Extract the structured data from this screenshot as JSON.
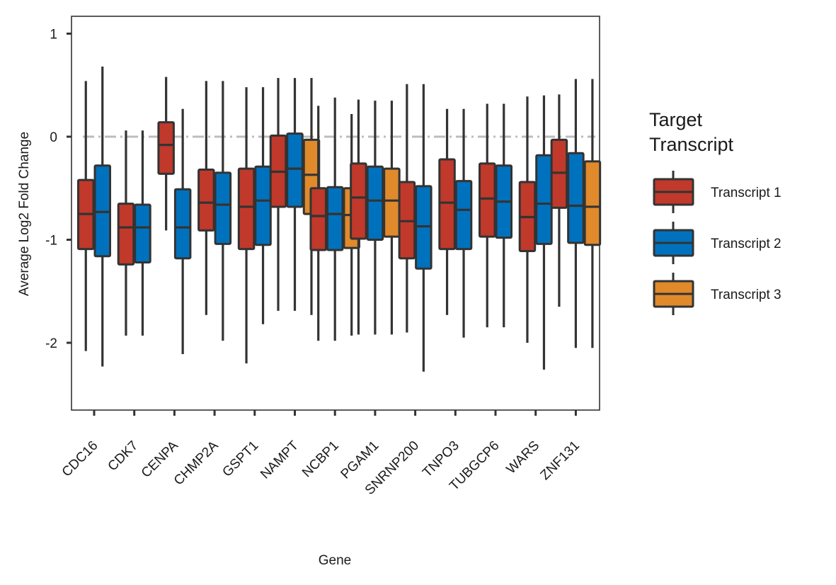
{
  "chart_data": {
    "type": "boxplot",
    "title": "",
    "xlabel": "Gene",
    "ylabel": "Average Log2 Fold Change",
    "ylim": [
      -2.65,
      1.17
    ],
    "yticks": [
      1,
      0,
      -1,
      -2
    ],
    "ytick_labels": [
      "1",
      "0",
      "-1",
      "-2"
    ],
    "reference_line": 0,
    "grid": false,
    "legend_position": "right",
    "legend_title": "Target\nTranscript",
    "categories": [
      "CDC16",
      "CDK7",
      "CENPA",
      "CHMP2A",
      "GSPT1",
      "NAMPT",
      "NCBP1",
      "PGAM1",
      "SNRNP200",
      "TNPO3",
      "TUBGCP6",
      "WARS",
      "ZNF131"
    ],
    "series": [
      {
        "name": "Transcript 1",
        "color": "#C0392B",
        "boxes": [
          {
            "min": -2.08,
            "q1": -1.09,
            "median": -0.75,
            "q3": -0.42,
            "max": 0.54
          },
          {
            "min": -1.93,
            "q1": -1.24,
            "median": -0.88,
            "q3": -0.65,
            "max": 0.06
          },
          {
            "min": -0.91,
            "q1": -0.36,
            "median": -0.08,
            "q3": 0.14,
            "max": 0.58
          },
          {
            "min": -1.73,
            "q1": -0.91,
            "median": -0.64,
            "q3": -0.32,
            "max": 0.54
          },
          {
            "min": -2.2,
            "q1": -1.09,
            "median": -0.68,
            "q3": -0.31,
            "max": 0.48
          },
          {
            "min": -1.69,
            "q1": -0.68,
            "median": -0.34,
            "q3": 0.01,
            "max": 0.57
          },
          {
            "min": -1.98,
            "q1": -1.1,
            "median": -0.77,
            "q3": -0.5,
            "max": 0.3
          },
          {
            "min": -1.92,
            "q1": -0.99,
            "median": -0.59,
            "q3": -0.26,
            "max": 0.36
          },
          {
            "min": -1.9,
            "q1": -1.18,
            "median": -0.82,
            "q3": -0.44,
            "max": 0.51
          },
          {
            "min": -1.73,
            "q1": -1.09,
            "median": -0.64,
            "q3": -0.22,
            "max": 0.27
          },
          {
            "min": -1.85,
            "q1": -0.97,
            "median": -0.6,
            "q3": -0.26,
            "max": 0.32
          },
          {
            "min": -2.0,
            "q1": -1.11,
            "median": -0.78,
            "q3": -0.44,
            "max": 0.39
          },
          {
            "min": -1.65,
            "q1": -0.69,
            "median": -0.35,
            "q3": -0.03,
            "max": 0.41
          }
        ]
      },
      {
        "name": "Transcript 2",
        "color": "#0072BD",
        "boxes": [
          {
            "min": -2.23,
            "q1": -1.16,
            "median": -0.73,
            "q3": -0.28,
            "max": 0.68
          },
          {
            "min": -1.93,
            "q1": -1.22,
            "median": -0.88,
            "q3": -0.66,
            "max": 0.06
          },
          {
            "min": -2.11,
            "q1": -1.18,
            "median": -0.88,
            "q3": -0.51,
            "max": 0.27
          },
          {
            "min": -1.98,
            "q1": -1.04,
            "median": -0.66,
            "q3": -0.35,
            "max": 0.54
          },
          {
            "min": -1.82,
            "q1": -1.05,
            "median": -0.62,
            "q3": -0.29,
            "max": 0.48
          },
          {
            "min": -1.69,
            "q1": -0.68,
            "median": -0.31,
            "q3": 0.03,
            "max": 0.57
          },
          {
            "min": -1.98,
            "q1": -1.1,
            "median": -0.75,
            "q3": -0.49,
            "max": 0.38
          },
          {
            "min": -1.92,
            "q1": -1.0,
            "median": -0.62,
            "q3": -0.29,
            "max": 0.35
          },
          {
            "min": -2.28,
            "q1": -1.28,
            "median": -0.87,
            "q3": -0.48,
            "max": 0.51
          },
          {
            "min": -1.95,
            "q1": -1.09,
            "median": -0.71,
            "q3": -0.43,
            "max": 0.27
          },
          {
            "min": -1.85,
            "q1": -0.98,
            "median": -0.63,
            "q3": -0.28,
            "max": 0.32
          },
          {
            "min": -2.26,
            "q1": -1.04,
            "median": -0.65,
            "q3": -0.18,
            "max": 0.4
          },
          {
            "min": -2.05,
            "q1": -1.03,
            "median": -0.67,
            "q3": -0.16,
            "max": 0.56
          }
        ]
      },
      {
        "name": "Transcript 3",
        "color": "#E08A2C",
        "boxes": [
          null,
          null,
          null,
          null,
          null,
          {
            "min": -1.73,
            "q1": -0.75,
            "median": -0.37,
            "q3": -0.03,
            "max": 0.57
          },
          {
            "min": -1.93,
            "q1": -1.08,
            "median": -0.76,
            "q3": -0.5,
            "max": 0.22
          },
          {
            "min": -1.92,
            "q1": -0.97,
            "median": -0.62,
            "q3": -0.31,
            "max": 0.35
          },
          null,
          null,
          null,
          null,
          {
            "min": -2.05,
            "q1": -1.05,
            "median": -0.68,
            "q3": -0.24,
            "max": 0.56
          }
        ]
      }
    ]
  }
}
